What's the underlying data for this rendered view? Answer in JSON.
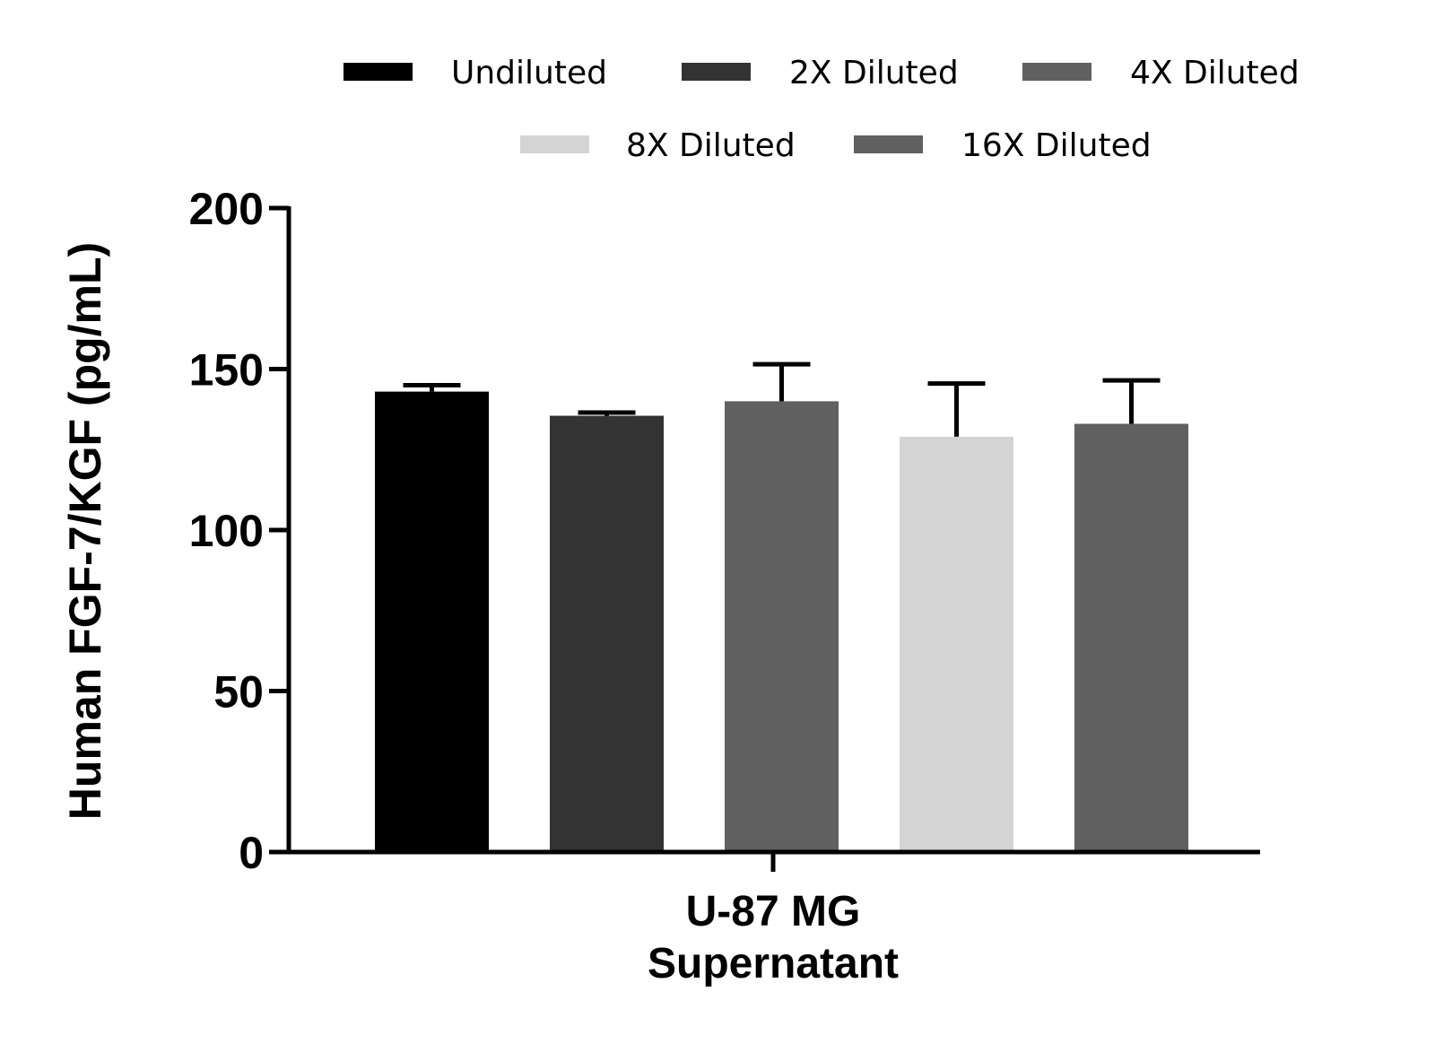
{
  "chart_data": {
    "type": "bar",
    "title": "",
    "categories": [
      "U-87 MG Supernatant"
    ],
    "category_lines": [
      "U-87 MG",
      "Supernatant"
    ],
    "xlabel": "",
    "ylabel": "Human FGF-7/KGF (pg/mL)",
    "ylim": [
      0,
      200
    ],
    "yticks": [
      "0",
      "50",
      "100",
      "150",
      "200"
    ],
    "grid": false,
    "legend_position": "top",
    "series": [
      {
        "name": "Undiluted",
        "values": [
          143
        ],
        "error": [
          2
        ],
        "color": "#000000"
      },
      {
        "name": "2X Diluted",
        "values": [
          135.5
        ],
        "error": [
          1
        ],
        "color": "#333333"
      },
      {
        "name": "4X Diluted",
        "values": [
          140
        ],
        "error": [
          11.5
        ],
        "color": "#606060"
      },
      {
        "name": "8X Diluted",
        "values": [
          129
        ],
        "error": [
          16.5
        ],
        "color": "#d4d4d4"
      },
      {
        "name": "16X Diluted",
        "values": [
          133
        ],
        "error": [
          13.5
        ],
        "color": "#606060"
      }
    ]
  }
}
